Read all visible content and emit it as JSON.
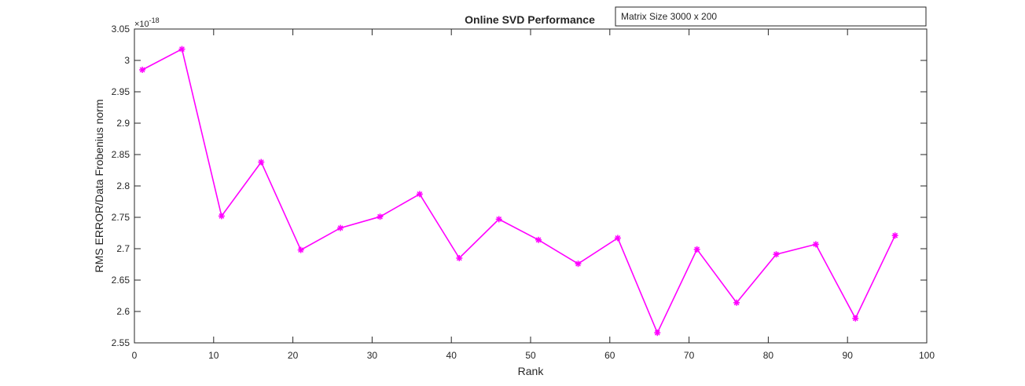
{
  "chart_data": {
    "type": "line",
    "title": "Online SVD Performance",
    "xlabel": "Rank",
    "ylabel": "RMS ERROR/Data Frobenius norm",
    "y_exponent_label": "×10",
    "y_exponent": "-18",
    "xlim": [
      0,
      100
    ],
    "ylim": [
      2.55,
      3.05
    ],
    "x_ticks": [
      0,
      10,
      20,
      30,
      40,
      50,
      60,
      70,
      80,
      90,
      100
    ],
    "y_ticks": [
      2.55,
      2.6,
      2.65,
      2.7,
      2.75,
      2.8,
      2.85,
      2.9,
      2.95,
      3,
      3.05
    ],
    "y_tick_labels": [
      "2.55",
      "2.6",
      "2.65",
      "2.7",
      "2.75",
      "2.8",
      "2.85",
      "2.9",
      "2.95",
      "3",
      "3.05"
    ],
    "grid": false,
    "legend_position": "top-right",
    "series": [
      {
        "name": "Matrix Size 3000 x 200",
        "color": "#ff00ff",
        "marker": "asterisk",
        "x": [
          1,
          6,
          11,
          16,
          21,
          26,
          31,
          36,
          41,
          46,
          51,
          56,
          61,
          66,
          71,
          76,
          81,
          86,
          91,
          96
        ],
        "y": [
          2.985,
          3.018,
          2.752,
          2.838,
          2.698,
          2.733,
          2.751,
          2.787,
          2.685,
          2.747,
          2.714,
          2.676,
          2.717,
          2.566,
          2.699,
          2.614,
          2.691,
          2.707,
          2.589,
          2.721
        ]
      }
    ]
  }
}
